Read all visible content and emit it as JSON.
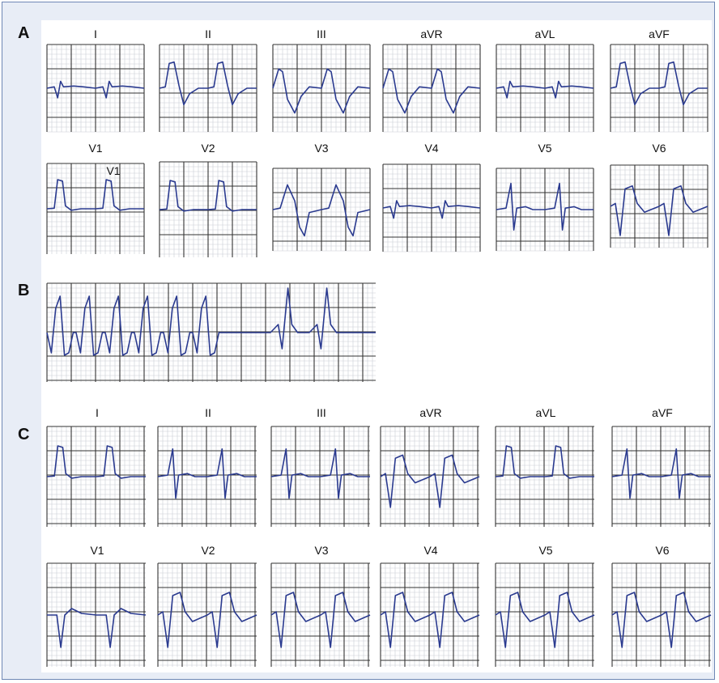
{
  "sections": {
    "A": {
      "label": "A",
      "row1": [
        "I",
        "II",
        "III",
        "aVR",
        "aVL",
        "aVF"
      ],
      "row2": [
        "V1",
        "V2",
        "V3",
        "V4",
        "V5",
        "V6"
      ],
      "inset_label": "V1"
    },
    "B": {
      "label": "B"
    },
    "C": {
      "label": "C",
      "row1": [
        "I",
        "II",
        "III",
        "aVR",
        "aVL",
        "aVF"
      ],
      "row2": [
        "V1",
        "V2",
        "V3",
        "V4",
        "V5",
        "V6"
      ]
    }
  },
  "colors": {
    "trace": "#2a3a8f",
    "grid_major": "#333333",
    "grid_minor": "#c9ced6",
    "frame": "#6e87b5",
    "background": "#e8edf6"
  }
}
